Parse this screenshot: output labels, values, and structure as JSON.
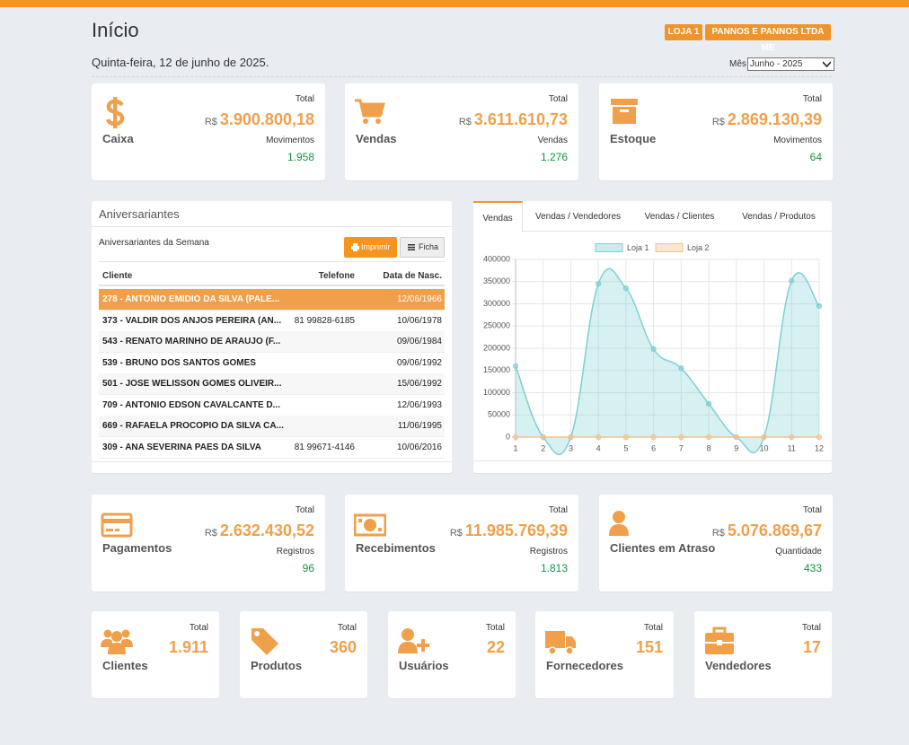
{
  "header": {
    "title": "Início",
    "badges": [
      "LOJA 1",
      "PANNOS E PANNOS LTDA ME"
    ],
    "date": "Quinta-feira, 12 de junho de 2025.",
    "month_label": "Mês",
    "month_value": "Junho - 2025"
  },
  "summary_cards": [
    {
      "title": "Caixa",
      "total_label": "Total",
      "currency": "R$",
      "total": "3.900.800,18",
      "sub_label": "Movimentos",
      "sub_value": "1.958"
    },
    {
      "title": "Vendas",
      "total_label": "Total",
      "currency": "R$",
      "total": "3.611.610,73",
      "sub_label": "Vendas",
      "sub_value": "1.276"
    },
    {
      "title": "Estoque",
      "total_label": "Total",
      "currency": "R$",
      "total": "2.869.130,39",
      "sub_label": "Movimentos",
      "sub_value": "64"
    }
  ],
  "birthdays": {
    "title": "Aniversariantes",
    "subtitle": "Aniversariantes da Semana",
    "buttons": [
      "Imprimir",
      "Ficha"
    ],
    "columns": [
      "Cliente",
      "Telefone",
      "Data de Nasc."
    ],
    "rows": [
      [
        "278 - ANTONIO EMIDIO DA SILVA (PALE...",
        null,
        "12/06/1966"
      ],
      [
        "373 - VALDIR DOS ANJOS PEREIRA (AN...",
        "81 99828-6185",
        "10/06/1978"
      ],
      [
        "543 - RENATO MARINHO DE ARAUJO (F...",
        null,
        "09/06/1984"
      ],
      [
        "539 - BRUNO DOS SANTOS GOMES",
        null,
        "09/06/1992"
      ],
      [
        "501 - JOSE WELISSON GOMES OLIVEIR...",
        null,
        "15/06/1992"
      ],
      [
        "709 - ANTONIO EDSON CAVALCANTE D...",
        null,
        "12/06/1993"
      ],
      [
        "669 - RAFAELA PROCOPIO DA SILVA CA...",
        null,
        "11/06/1995"
      ],
      [
        "309 - ANA SEVERINA PAES DA SILVA",
        "81 99671-4146",
        "10/06/2016"
      ]
    ]
  },
  "chart_tabs": [
    "Vendas",
    "Vendas / Vendedores",
    "Vendas / Clientes",
    "Vendas / Produtos"
  ],
  "chart_data": {
    "type": "line",
    "x": [
      1,
      2,
      3,
      4,
      5,
      6,
      7,
      8,
      9,
      10,
      11,
      12
    ],
    "series": [
      {
        "name": "Loja 1",
        "color": "#7ccfd4",
        "values": [
          160000,
          0,
          0,
          345000,
          335000,
          198000,
          155000,
          75000,
          0,
          0,
          352000,
          295000
        ]
      },
      {
        "name": "Loja 2",
        "color": "#f7c08c",
        "values": [
          0,
          0,
          0,
          0,
          0,
          0,
          0,
          0,
          0,
          0,
          0,
          0
        ]
      }
    ],
    "xlim": [
      1,
      12
    ],
    "xticks": [
      1,
      2,
      3,
      4,
      5,
      6,
      7,
      8,
      9,
      10,
      11,
      12
    ],
    "ylim": [
      0,
      400000
    ],
    "yticks": [
      0,
      50000,
      100000,
      150000,
      200000,
      250000,
      300000,
      350000,
      400000
    ],
    "grid": true,
    "legend": "top"
  },
  "finance_cards": [
    {
      "title": "Pagamentos",
      "total_label": "Total",
      "currency": "R$",
      "total": "2.632.430,52",
      "sub_label": "Registros",
      "sub_value": "96"
    },
    {
      "title": "Recebimentos",
      "total_label": "Total",
      "currency": "R$",
      "total": "11.985.769,39",
      "sub_label": "Registros",
      "sub_value": "1.813"
    },
    {
      "title": "Clientes em Atraso",
      "total_label": "Total",
      "currency": "R$",
      "total": "5.076.869,67",
      "sub_label": "Quantidade",
      "sub_value": "433"
    }
  ],
  "count_cards": [
    {
      "title": "Clientes",
      "total_label": "Total",
      "total": "1.911"
    },
    {
      "title": "Produtos",
      "total_label": "Total",
      "total": "360"
    },
    {
      "title": "Usuários",
      "total_label": "Total",
      "total": "22"
    },
    {
      "title": "Fornecedores",
      "total_label": "Total",
      "total": "151"
    },
    {
      "title": "Vendedores",
      "total_label": "Total",
      "total": "17"
    }
  ]
}
